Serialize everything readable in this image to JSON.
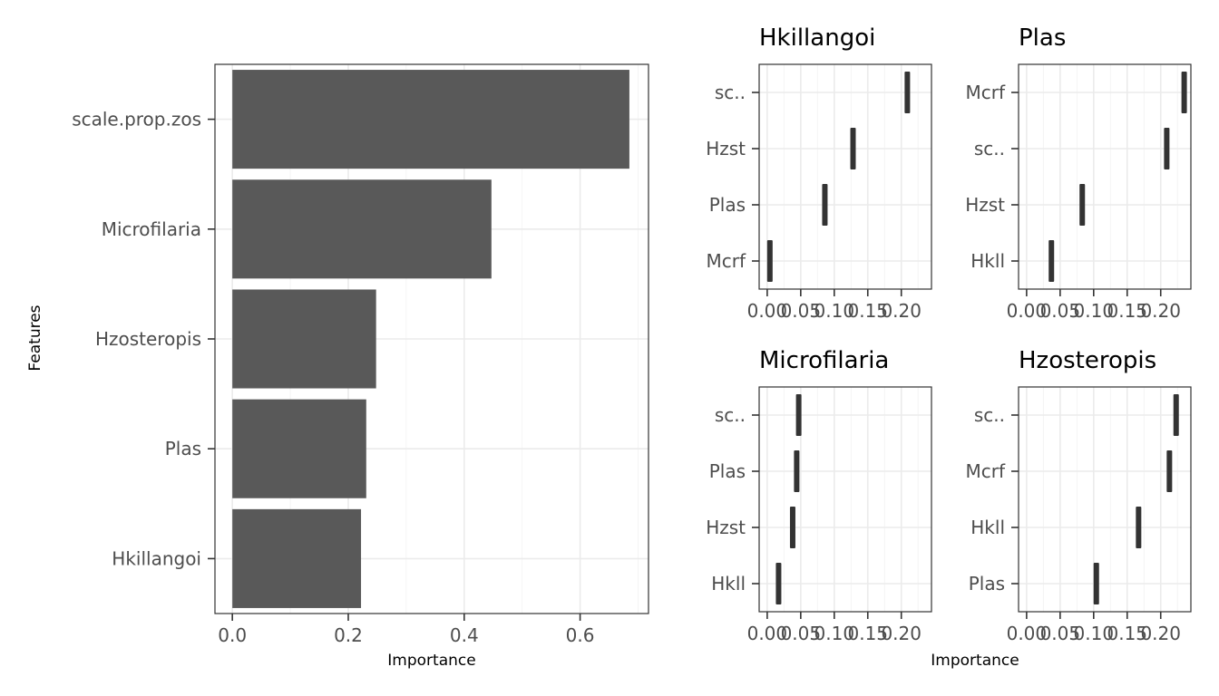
{
  "chart_data": [
    {
      "type": "bar",
      "orientation": "horizontal",
      "categories": [
        "scale.prop.zos",
        "Microfilaria",
        "Hzosteropis",
        "Plas",
        "Hkillangoi"
      ],
      "values": [
        0.685,
        0.447,
        0.248,
        0.231,
        0.222
      ],
      "xlabel": "Importance",
      "ylabel": "Features",
      "xlim": [
        -0.03,
        0.718
      ],
      "xticks": [
        0.0,
        0.2,
        0.4,
        0.6
      ],
      "xtick_labels": [
        "0.0",
        "0.2",
        "0.4",
        "0.6"
      ],
      "grid": true,
      "bar_color": "#595959"
    },
    {
      "type": "scatter",
      "mark": "vertical-tick",
      "title": "Hkillangoi",
      "categories": [
        "sc..",
        "Hzst",
        "Plas",
        "Mcrf"
      ],
      "values": [
        0.209,
        0.128,
        0.086,
        0.004
      ],
      "xlim": [
        -0.012,
        0.245
      ],
      "xticks": [
        0.0,
        0.05,
        0.1,
        0.15,
        0.2
      ],
      "xtick_labels": [
        "0.00",
        "0.05",
        "0.10",
        "0.15",
        "0.20"
      ]
    },
    {
      "type": "scatter",
      "mark": "vertical-tick",
      "title": "Plas",
      "categories": [
        "Mcrf",
        "sc..",
        "Hzst",
        "Hkll"
      ],
      "values": [
        0.235,
        0.209,
        0.083,
        0.037
      ],
      "xlim": [
        -0.012,
        0.245
      ],
      "xticks": [
        0.0,
        0.05,
        0.1,
        0.15,
        0.2
      ],
      "xtick_labels": [
        "0.00",
        "0.05",
        "0.10",
        "0.15",
        "0.20"
      ]
    },
    {
      "type": "scatter",
      "mark": "vertical-tick",
      "title": "Microfilaria",
      "categories": [
        "sc..",
        "Plas",
        "Hzst",
        "Hkll"
      ],
      "values": [
        0.047,
        0.044,
        0.038,
        0.017
      ],
      "xlim": [
        -0.012,
        0.245
      ],
      "xticks": [
        0.0,
        0.05,
        0.1,
        0.15,
        0.2
      ],
      "xtick_labels": [
        "0.00",
        "0.05",
        "0.10",
        "0.15",
        "0.20"
      ]
    },
    {
      "type": "scatter",
      "mark": "vertical-tick",
      "title": "Hzosteropis",
      "categories": [
        "sc..",
        "Mcrf",
        "Hkll",
        "Plas"
      ],
      "values": [
        0.223,
        0.213,
        0.167,
        0.104
      ],
      "xlim": [
        -0.012,
        0.245
      ],
      "xticks": [
        0.0,
        0.05,
        0.1,
        0.15,
        0.2
      ],
      "xtick_labels": [
        "0.00",
        "0.05",
        "0.10",
        "0.15",
        "0.20"
      ]
    }
  ],
  "shared_facet_xlabel": "Importance"
}
